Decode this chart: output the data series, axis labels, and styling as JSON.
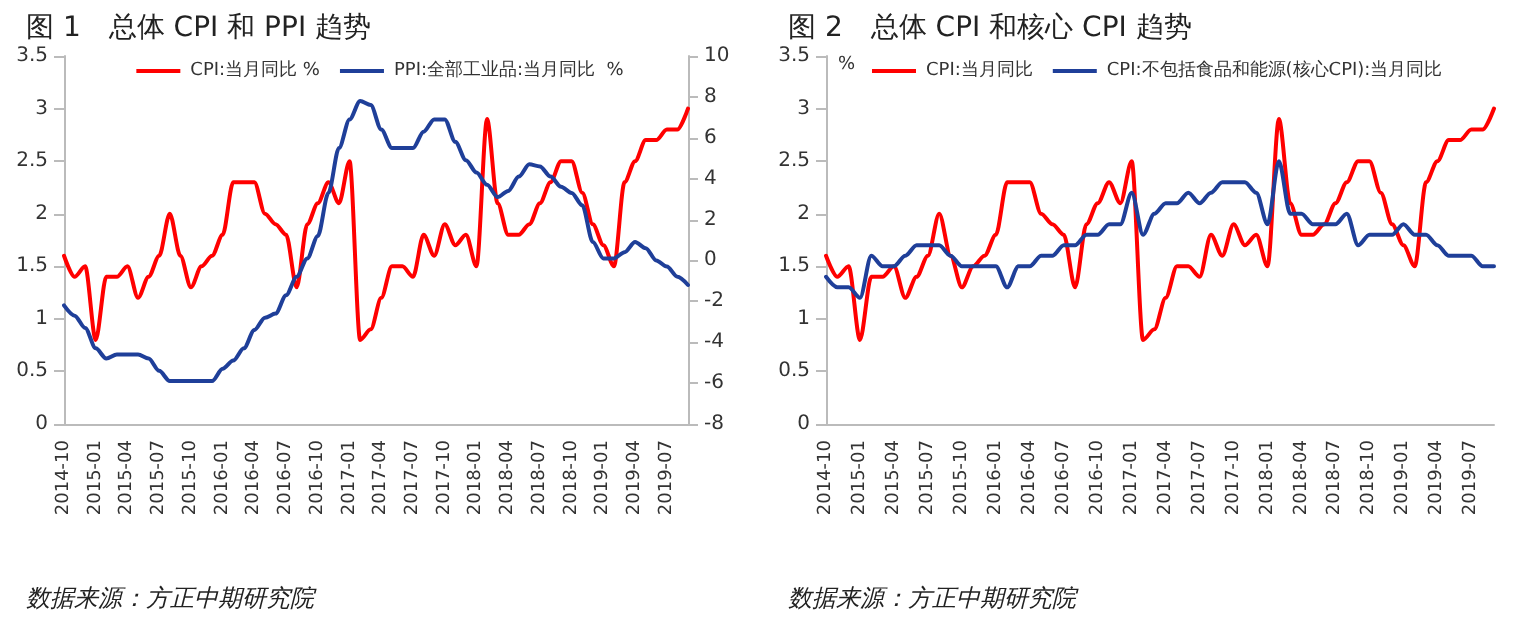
{
  "chart_data": [
    {
      "type": "line",
      "title": "图 1　总体 CPI 和 PPI 趋势",
      "categories": [
        "2014-10",
        null,
        null,
        "2015-01",
        null,
        null,
        "2015-04",
        null,
        null,
        "2015-07",
        null,
        null,
        "2015-10",
        null,
        null,
        "2016-01",
        null,
        null,
        "2016-04",
        null,
        null,
        "2016-07",
        null,
        null,
        "2016-10",
        null,
        null,
        "2017-01",
        null,
        null,
        "2017-04",
        null,
        null,
        "2017-07",
        null,
        null,
        "2017-10",
        null,
        null,
        "2018-01",
        null,
        null,
        "2018-04",
        null,
        null,
        "2018-07",
        null,
        null,
        "2018-10",
        null,
        null,
        "2019-01",
        null,
        null,
        "2019-04",
        null,
        null,
        "2019-07",
        null,
        null
      ],
      "series": [
        {
          "name": "CPI:当月同比 %",
          "color": "#ff0000",
          "values": [
            1.6,
            1.4,
            1.5,
            0.8,
            1.4,
            1.4,
            1.5,
            1.2,
            1.4,
            1.6,
            2.0,
            1.6,
            1.3,
            1.5,
            1.6,
            1.8,
            2.3,
            2.3,
            2.3,
            2.0,
            1.9,
            1.8,
            1.3,
            1.9,
            2.1,
            2.3,
            2.1,
            2.5,
            0.8,
            0.9,
            1.2,
            1.5,
            1.5,
            1.4,
            1.8,
            1.6,
            1.9,
            1.7,
            1.8,
            1.5,
            2.9,
            2.1,
            1.8,
            1.8,
            1.9,
            2.1,
            2.3,
            2.5,
            2.5,
            2.2,
            1.9,
            1.7,
            1.5,
            2.3,
            2.5,
            2.7,
            2.7,
            2.8,
            2.8,
            3.0
          ]
        },
        {
          "name": "PPI:全部工业品:当月同比  %",
          "color": "#1f3f99",
          "axis": "y2",
          "values": [
            -2.2,
            -2.7,
            -3.3,
            -4.3,
            -4.8,
            -4.6,
            -4.6,
            -4.6,
            -4.8,
            -5.4,
            -5.9,
            -5.9,
            -5.9,
            -5.9,
            -5.9,
            -5.3,
            -4.9,
            -4.3,
            -3.4,
            -2.8,
            -2.6,
            -1.7,
            -0.8,
            0.1,
            1.2,
            3.3,
            5.5,
            6.9,
            7.8,
            7.6,
            6.4,
            5.5,
            5.5,
            5.5,
            6.3,
            6.9,
            6.9,
            5.8,
            4.9,
            4.3,
            3.7,
            3.1,
            3.4,
            4.1,
            4.7,
            4.6,
            4.1,
            3.6,
            3.3,
            2.7,
            0.9,
            0.1,
            0.1,
            0.4,
            0.9,
            0.6,
            0.0,
            -0.3,
            -0.8,
            -1.2
          ]
        }
      ],
      "ylim": [
        0,
        3.5
      ],
      "yticks": [
        0,
        0.5,
        1,
        1.5,
        2,
        2.5,
        3,
        3.5
      ],
      "y2lim": [
        -8,
        10
      ],
      "y2ticks": [
        -8,
        -6,
        -4,
        -2,
        0,
        2,
        4,
        6,
        8,
        10
      ],
      "legend": "top",
      "grid": false,
      "marker": "none",
      "line_style": "solid",
      "annotations": [
        "数据来源：方正中期研究院"
      ]
    },
    {
      "type": "line",
      "title": "图 2　总体 CPI 和核心 CPI 趋势",
      "ylabel": "%",
      "categories": [
        "2014-10",
        null,
        null,
        "2015-01",
        null,
        null,
        "2015-04",
        null,
        null,
        "2015-07",
        null,
        null,
        "2015-10",
        null,
        null,
        "2016-01",
        null,
        null,
        "2016-04",
        null,
        null,
        "2016-07",
        null,
        null,
        "2016-10",
        null,
        null,
        "2017-01",
        null,
        null,
        "2017-04",
        null,
        null,
        "2017-07",
        null,
        null,
        "2017-10",
        null,
        null,
        "2018-01",
        null,
        null,
        "2018-04",
        null,
        null,
        "2018-07",
        null,
        null,
        "2018-10",
        null,
        null,
        "2019-01",
        null,
        null,
        "2019-04",
        null,
        null,
        "2019-07",
        null,
        null
      ],
      "series": [
        {
          "name": "CPI:当月同比",
          "color": "#ff0000",
          "values": [
            1.6,
            1.4,
            1.5,
            0.8,
            1.4,
            1.4,
            1.5,
            1.2,
            1.4,
            1.6,
            2.0,
            1.6,
            1.3,
            1.5,
            1.6,
            1.8,
            2.3,
            2.3,
            2.3,
            2.0,
            1.9,
            1.8,
            1.3,
            1.9,
            2.1,
            2.3,
            2.1,
            2.5,
            0.8,
            0.9,
            1.2,
            1.5,
            1.5,
            1.4,
            1.8,
            1.6,
            1.9,
            1.7,
            1.8,
            1.5,
            2.9,
            2.1,
            1.8,
            1.8,
            1.9,
            2.1,
            2.3,
            2.5,
            2.5,
            2.2,
            1.9,
            1.7,
            1.5,
            2.3,
            2.5,
            2.7,
            2.7,
            2.8,
            2.8,
            3.0
          ]
        },
        {
          "name": "CPI:不包括食品和能源(核心CPI):当月同比",
          "color": "#1f3f99",
          "values": [
            1.4,
            1.3,
            1.3,
            1.2,
            1.6,
            1.5,
            1.5,
            1.6,
            1.7,
            1.7,
            1.7,
            1.6,
            1.5,
            1.5,
            1.5,
            1.5,
            1.3,
            1.5,
            1.5,
            1.6,
            1.6,
            1.7,
            1.7,
            1.8,
            1.8,
            1.9,
            1.9,
            2.2,
            1.8,
            2.0,
            2.1,
            2.1,
            2.2,
            2.1,
            2.2,
            2.3,
            2.3,
            2.3,
            2.2,
            1.9,
            2.5,
            2.0,
            2.0,
            1.9,
            1.9,
            1.9,
            2.0,
            1.7,
            1.8,
            1.8,
            1.8,
            1.9,
            1.8,
            1.8,
            1.7,
            1.6,
            1.6,
            1.6,
            1.5,
            1.5
          ]
        }
      ],
      "ylim": [
        0,
        3.5
      ],
      "yticks": [
        0,
        0.5,
        1,
        1.5,
        2,
        2.5,
        3,
        3.5
      ],
      "legend": "top",
      "grid": false,
      "marker": "none",
      "line_style": "solid",
      "annotations": [
        "数据来源：方正中期研究院"
      ]
    }
  ]
}
